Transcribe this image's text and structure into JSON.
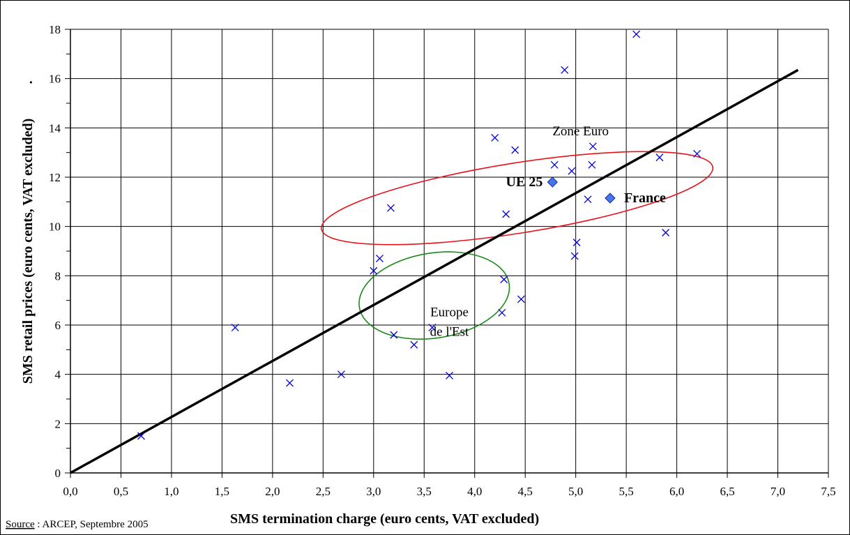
{
  "chart_data": {
    "type": "scatter",
    "xlabel": "SMS termination charge (euro cents, VAT excluded)",
    "ylabel": "SMS retail prices (euro cents, VAT excluded)",
    "ylabel_suffix": ".",
    "xlim": [
      0,
      7.5
    ],
    "ylim": [
      0,
      18
    ],
    "x_ticks": [
      "0,0",
      "0,5",
      "1,0",
      "1,5",
      "2,0",
      "2,5",
      "3,0",
      "3,5",
      "4,0",
      "4,5",
      "5,0",
      "5,5",
      "6,0",
      "6,5",
      "7,0",
      "7,5"
    ],
    "y_ticks": [
      "0",
      "2",
      "4",
      "6",
      "8",
      "10",
      "12",
      "14",
      "16",
      "18"
    ],
    "grid": true,
    "points": [
      [
        0.7,
        1.5
      ],
      [
        1.63,
        5.9
      ],
      [
        2.17,
        3.65
      ],
      [
        2.68,
        4.0
      ],
      [
        3.0,
        8.2
      ],
      [
        3.06,
        8.7
      ],
      [
        3.17,
        10.75
      ],
      [
        3.2,
        5.6
      ],
      [
        3.4,
        5.2
      ],
      [
        3.58,
        5.9
      ],
      [
        3.75,
        3.95
      ],
      [
        4.2,
        13.6
      ],
      [
        4.27,
        6.5
      ],
      [
        4.29,
        7.85
      ],
      [
        4.31,
        10.5
      ],
      [
        4.4,
        13.1
      ],
      [
        4.46,
        7.05
      ],
      [
        4.79,
        12.5
      ],
      [
        4.89,
        16.35
      ],
      [
        4.96,
        12.25
      ],
      [
        4.99,
        8.8
      ],
      [
        5.01,
        9.35
      ],
      [
        5.12,
        11.1
      ],
      [
        5.16,
        12.5
      ],
      [
        5.17,
        13.25
      ],
      [
        5.6,
        17.8
      ],
      [
        5.83,
        12.8
      ],
      [
        5.89,
        9.75
      ],
      [
        6.2,
        12.95
      ]
    ],
    "highlighted": [
      {
        "label": "UE 25",
        "x": 4.77,
        "y": 11.8
      },
      {
        "label": "France",
        "x": 5.34,
        "y": 11.15
      }
    ],
    "trend_line": {
      "x": [
        0,
        7.2
      ],
      "y": [
        0,
        16.35
      ]
    },
    "groups": [
      {
        "label": "Zone Euro",
        "cx": 4.42,
        "cy": 11.15,
        "rx": 1.96,
        "ry": 2.85,
        "angle_deg": -9,
        "color": "#e8111b"
      },
      {
        "label_lines": [
          "Europe",
          "de l'Est"
        ],
        "cx": 3.6,
        "cy": 7.2,
        "rx": 0.75,
        "ry": 3.45,
        "angle_deg": -9,
        "color": "#1a8a1a"
      }
    ],
    "colors": {
      "points": "#0000dd",
      "highlight": "#4477ee",
      "trend": "#000000"
    }
  },
  "source": {
    "prefix": "Source",
    "sep": " : ",
    "text": "ARCEP, Septembre 2005"
  }
}
